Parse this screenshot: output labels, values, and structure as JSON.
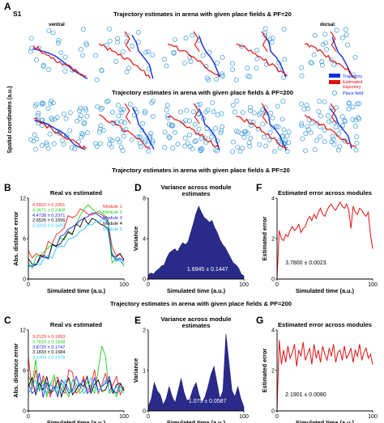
{
  "figure": {
    "panel_letters": {
      "A": "A",
      "B": "B",
      "C": "C",
      "D": "D",
      "E": "E",
      "F": "F",
      "G": "G"
    },
    "sublabel": "S1",
    "ylabel_A": "Spatial coordinates (a.u.)",
    "row1_title": "Trajectory estimates in arena with given place fields & PF=20",
    "row2_title": "Trajectory estimates in arena with given place fields & PF=200",
    "row3_title": "Trajectory estimates in arena with given place fields & PF=20",
    "row4_title": "Trajectory estimates in arena with given place fields & PF=200",
    "ventral": "ventral",
    "dorsal": "dorsal",
    "legend_A": {
      "trajectory": "Trajectory",
      "estimated": "Estimated",
      "estimated2": "trajectory",
      "place_field": "Place field"
    },
    "colors": {
      "trajectory": "#1030e0",
      "estimated": "#e01010",
      "place_field": "#3a9ad8",
      "variance_fill": "#2a2a8a",
      "error_line": "#e01010"
    }
  },
  "chart_data": [
    {
      "panel": "B",
      "type": "line",
      "title": "Real vs estimated",
      "xlabel": "Simulated time (a.u.)",
      "ylabel": "Abs. distance error",
      "xlim": [
        0,
        100
      ],
      "ylim": [
        0,
        12
      ],
      "xticks": [
        "0",
        "100"
      ],
      "yticks": [
        "0",
        "6",
        "12"
      ],
      "legend_position": "top-right",
      "series": [
        {
          "name": "Module 1",
          "color": "#ff2020",
          "stat": "4.5922 ± 0.2201",
          "values": [
            4.2,
            3.1,
            3.8,
            3.4,
            3.6,
            5.6,
            5.2,
            6.6,
            7.0,
            7.6,
            9.4,
            9.1,
            9.4,
            10.4,
            10.1,
            9.6,
            9.5,
            9.9,
            9.7,
            9.3,
            8.6,
            4.8,
            3.5,
            3.7,
            2.9
          ]
        },
        {
          "name": "Module 2",
          "color": "#20d020",
          "stat": "4.3671 ± 0.2408",
          "values": [
            2.4,
            1.6,
            3.4,
            3.5,
            4.1,
            4.6,
            5.2,
            4.9,
            6.1,
            5.8,
            7.1,
            6.7,
            8.1,
            9.4,
            10.4,
            11.0,
            10.4,
            9.9,
            10.1,
            9.5,
            9.0,
            2.4,
            3.1,
            2.8,
            1.9
          ]
        },
        {
          "name": "Module 3",
          "color": "#2020ff",
          "stat": "4.4738 ± 0.2371",
          "values": [
            2.0,
            1.9,
            2.1,
            3.1,
            3.5,
            3.0,
            5.1,
            4.8,
            6.3,
            6.6,
            7.4,
            7.7,
            8.1,
            8.7,
            9.0,
            9.3,
            9.8,
            9.7,
            9.3,
            8.9,
            8.5,
            3.5,
            2.8,
            3.1,
            2.6
          ]
        },
        {
          "name": "Module 4",
          "color": "#000000",
          "stat": "2.6526 ± 0.1556",
          "values": [
            3.0,
            2.2,
            2.1,
            3.5,
            3.2,
            3.1,
            5.1,
            4.9,
            5.2,
            6.1,
            7.0,
            6.6,
            8.2,
            7.7,
            9.1,
            8.1,
            9.0,
            8.7,
            8.2,
            7.9,
            7.5,
            3.6,
            3.2,
            3.8,
            2.8
          ]
        },
        {
          "name": "Module 5",
          "color": "#20c8ff",
          "stat": "3.3102 ± 0.1692",
          "values": [
            1.8,
            2.1,
            2.4,
            2.1,
            3.1,
            3.5,
            3.1,
            4.6,
            4.9,
            4.8,
            5.9,
            6.1,
            6.4,
            7.1,
            7.4,
            8.1,
            8.0,
            8.6,
            8.6,
            8.9,
            8.4,
            3.9,
            2.6,
            2.8,
            2.2
          ]
        }
      ]
    },
    {
      "panel": "D",
      "type": "area",
      "title": "Variance across module",
      "title2": "estimates",
      "xlabel": "Simulated time (a.u.)",
      "ylabel": "Variance",
      "xlim": [
        0,
        100
      ],
      "ylim": [
        0,
        8
      ],
      "xticks": [
        "0",
        "100"
      ],
      "yticks": [
        "0",
        "4",
        "8"
      ],
      "annotation": "1.6945 ± 0.1447",
      "values": [
        0.4,
        0.6,
        0.5,
        0.8,
        1.0,
        1.3,
        1.4,
        2.1,
        2.6,
        2.8,
        3.0,
        2.7,
        3.2,
        3.6,
        3.4,
        3.7,
        4.6,
        5.5,
        6.5,
        7.2,
        6.6,
        6.1,
        5.9,
        5.6,
        5.8,
        5.1,
        4.6,
        3.9,
        3.4,
        3.1,
        2.6,
        2.1,
        1.6,
        1.4,
        1.1,
        0.5,
        0.3
      ]
    },
    {
      "panel": "F",
      "type": "line",
      "title": "Estimated error across modules",
      "xlabel": "Simulated time (a.u.)",
      "ylabel": "Estimated error",
      "xlim": [
        0,
        100
      ],
      "ylim": [
        0,
        4
      ],
      "xticks": [
        "0",
        "100"
      ],
      "yticks": [
        "0",
        "2",
        "4"
      ],
      "annotation": "3.7800 ± 0.0023",
      "values": [
        0.1,
        2.4,
        2.0,
        1.9,
        2.2,
        2.1,
        2.4,
        2.6,
        2.4,
        2.5,
        2.7,
        2.3,
        2.5,
        2.6,
        2.9,
        3.1,
        2.9,
        3.2,
        3.0,
        3.3,
        3.5,
        3.2,
        3.1,
        3.4,
        3.6,
        3.7,
        3.5,
        3.4,
        3.6,
        3.8,
        3.6,
        3.5,
        3.7,
        3.4,
        2.5,
        3.6,
        3.3,
        3.2,
        3.5,
        3.4,
        3.2,
        3.1,
        3.3,
        2.2,
        1.5
      ]
    },
    {
      "panel": "C",
      "type": "line",
      "title": "Real vs estimated",
      "xlabel": "Simulated time (a.u.)",
      "ylabel": "Abs. distance error",
      "xlim": [
        0,
        100
      ],
      "ylim": [
        0,
        12
      ],
      "xticks": [
        "0",
        "100"
      ],
      "yticks": [
        "0",
        "6",
        "12"
      ],
      "series": [
        {
          "color": "#ff2020",
          "stat": "3.2129 ± 0.1893",
          "values": [
            8.0,
            3.2,
            6.1,
            2.9,
            5.2,
            3.6,
            2.1,
            4.6,
            5.0,
            3.1,
            2.6,
            6.1,
            5.7,
            2.6,
            3.1,
            5.1,
            2.9,
            3.6,
            6.1,
            2.6,
            3.9,
            5.6,
            2.9,
            3.9,
            5.1,
            2.4,
            3.6
          ]
        },
        {
          "color": "#20d020",
          "stat": "3.7659 ± 0.1848",
          "values": [
            5.2,
            3.9,
            7.6,
            3.1,
            4.6,
            2.1,
            3.8,
            5.3,
            2.6,
            4.1,
            3.0,
            2.1,
            4.6,
            4.0,
            2.6,
            3.2,
            4.3,
            3.6,
            2.6,
            6.1,
            9.6,
            8.1,
            2.6,
            3.1,
            2.1,
            3.6,
            2.9
          ]
        },
        {
          "color": "#2020ff",
          "stat": "3.8720 ± 0.1747",
          "values": [
            4.1,
            2.6,
            3.1,
            5.6,
            2.0,
            4.2,
            2.9,
            3.6,
            2.1,
            4.6,
            3.9,
            2.6,
            3.1,
            5.1,
            3.6,
            4.6,
            2.6,
            3.1,
            4.9,
            2.9,
            3.6,
            4.1,
            5.1,
            3.1,
            2.6,
            4.0,
            3.1
          ]
        },
        {
          "color": "#000000",
          "stat": "3.1833 ± 0.1584",
          "values": [
            3.6,
            4.9,
            2.4,
            4.1,
            3.1,
            5.1,
            2.6,
            3.1,
            4.6,
            2.1,
            3.6,
            4.9,
            2.4,
            3.1,
            4.1,
            3.6,
            5.1,
            2.6,
            3.9,
            4.6,
            2.9,
            3.1,
            4.6,
            2.6,
            3.9,
            4.1,
            3.0
          ]
        },
        {
          "color": "#20c8ff",
          "stat": "3.1304 ± 0.1576",
          "values": [
            2.6,
            3.6,
            4.6,
            2.9,
            3.9,
            2.6,
            4.1,
            3.1,
            3.6,
            2.6,
            4.6,
            3.1,
            2.9,
            3.6,
            4.1,
            2.6,
            3.1,
            4.9,
            3.6,
            2.9,
            3.6,
            4.6,
            3.1,
            2.9,
            3.6,
            3.1,
            2.6
          ]
        }
      ]
    },
    {
      "panel": "E",
      "type": "area",
      "title": "Variance across module",
      "title2": "estimates",
      "xlabel": "Simulated time (a.u.)",
      "ylabel": "Variance",
      "xlim": [
        0,
        100
      ],
      "ylim": [
        0,
        2
      ],
      "xticks": [
        "0",
        "100"
      ],
      "yticks": [
        "0",
        "1",
        "2"
      ],
      "annotation": "1.075 ± 0.0587",
      "values": [
        0.1,
        0.3,
        0.7,
        0.5,
        0.4,
        0.15,
        0.3,
        0.6,
        0.35,
        0.2,
        0.5,
        0.8,
        0.45,
        0.25,
        0.3,
        0.55,
        0.7,
        0.4,
        0.2,
        0.35,
        0.6,
        0.9,
        1.1,
        0.7,
        0.3,
        0.5,
        1.9,
        1.2,
        0.5,
        0.35,
        0.6,
        0.3,
        0.1
      ]
    },
    {
      "panel": "G",
      "type": "line",
      "title": "Estimated error across modules",
      "xlabel": "Simulated time (a.u.)",
      "ylabel": "Estimated error",
      "xlim": [
        0,
        100
      ],
      "ylim": [
        0,
        4
      ],
      "xticks": [
        "0",
        "100"
      ],
      "yticks": [
        "0",
        "2",
        "4"
      ],
      "annotation": "2.1901 ± 0.0080",
      "values": [
        0.1,
        3.5,
        2.3,
        3.0,
        2.4,
        3.2,
        2.6,
        2.9,
        3.3,
        2.2,
        3.0,
        2.7,
        3.4,
        2.5,
        2.8,
        3.1,
        2.3,
        3.3,
        2.6,
        3.0,
        2.4,
        3.2,
        2.8,
        2.5,
        3.1,
        2.7,
        3.3,
        2.4,
        2.9,
        3.0,
        2.5,
        3.2,
        2.6,
        2.8,
        3.1,
        2.4,
        3.0,
        2.7,
        3.3,
        2.5,
        2.9,
        3.1,
        2.6,
        2.8,
        2.3
      ]
    }
  ]
}
